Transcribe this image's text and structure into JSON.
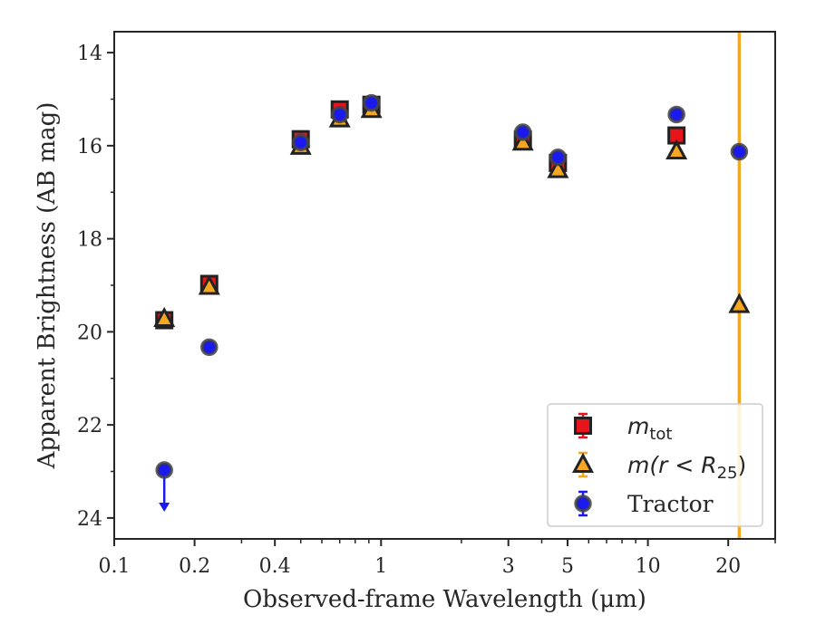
{
  "chart_data": {
    "type": "scatter",
    "xlabel": "Observed-frame Wavelength (μm)",
    "ylabel": "Apparent Brightness (AB mag)",
    "x_scale": "log",
    "xlim": [
      0.1,
      30
    ],
    "ylim": [
      24.45,
      13.55
    ],
    "y_inverted": true,
    "x_ticks": [
      0.1,
      0.2,
      0.4,
      1,
      3,
      5,
      10,
      20
    ],
    "x_tick_labels": [
      "0.1",
      "0.2",
      "0.4",
      "1",
      "3",
      "5",
      "10",
      "20"
    ],
    "y_ticks": [
      14,
      16,
      18,
      20,
      22,
      24
    ],
    "y_tick_labels": [
      "14",
      "16",
      "18",
      "20",
      "22",
      "24"
    ],
    "grid": false,
    "legend_position": "bottom-right",
    "vertical_line": {
      "x": 22,
      "color": "#f5a623"
    },
    "series": [
      {
        "name": "m_tot",
        "legend_label": "m",
        "legend_sub": "tot",
        "marker": "square",
        "color": "#e8141b",
        "points": [
          {
            "x": 0.154,
            "y": 19.75
          },
          {
            "x": 0.227,
            "y": 18.97
          },
          {
            "x": 0.5,
            "y": 15.86
          },
          {
            "x": 0.7,
            "y": 15.22
          },
          {
            "x": 0.92,
            "y": 15.12
          },
          {
            "x": 3.4,
            "y": 15.87
          },
          {
            "x": 4.6,
            "y": 16.37
          },
          {
            "x": 12.8,
            "y": 15.78
          }
        ]
      },
      {
        "name": "m(r < R25)",
        "legend_label": "m(r < R",
        "legend_sub": "25",
        "legend_tail": ")",
        "marker": "triangle",
        "color": "#f5a623",
        "points": [
          {
            "x": 0.154,
            "y": 19.72
          },
          {
            "x": 0.227,
            "y": 19.03
          },
          {
            "x": 0.5,
            "y": 16.02
          },
          {
            "x": 0.7,
            "y": 15.43
          },
          {
            "x": 0.92,
            "y": 15.23
          },
          {
            "x": 3.4,
            "y": 15.93
          },
          {
            "x": 4.6,
            "y": 16.52
          },
          {
            "x": 12.8,
            "y": 16.12
          },
          {
            "x": 22,
            "y": 19.42
          }
        ]
      },
      {
        "name": "Tractor",
        "marker": "circle",
        "color": "#1a1aee",
        "points": [
          {
            "x": 0.154,
            "y": 22.97,
            "upper_limit": true
          },
          {
            "x": 0.227,
            "y": 20.33
          },
          {
            "x": 0.5,
            "y": 15.93
          },
          {
            "x": 0.7,
            "y": 15.33
          },
          {
            "x": 0.92,
            "y": 15.08
          },
          {
            "x": 3.4,
            "y": 15.71
          },
          {
            "x": 4.6,
            "y": 16.25
          },
          {
            "x": 12.8,
            "y": 15.33
          },
          {
            "x": 22,
            "y": 16.13
          }
        ]
      }
    ]
  }
}
